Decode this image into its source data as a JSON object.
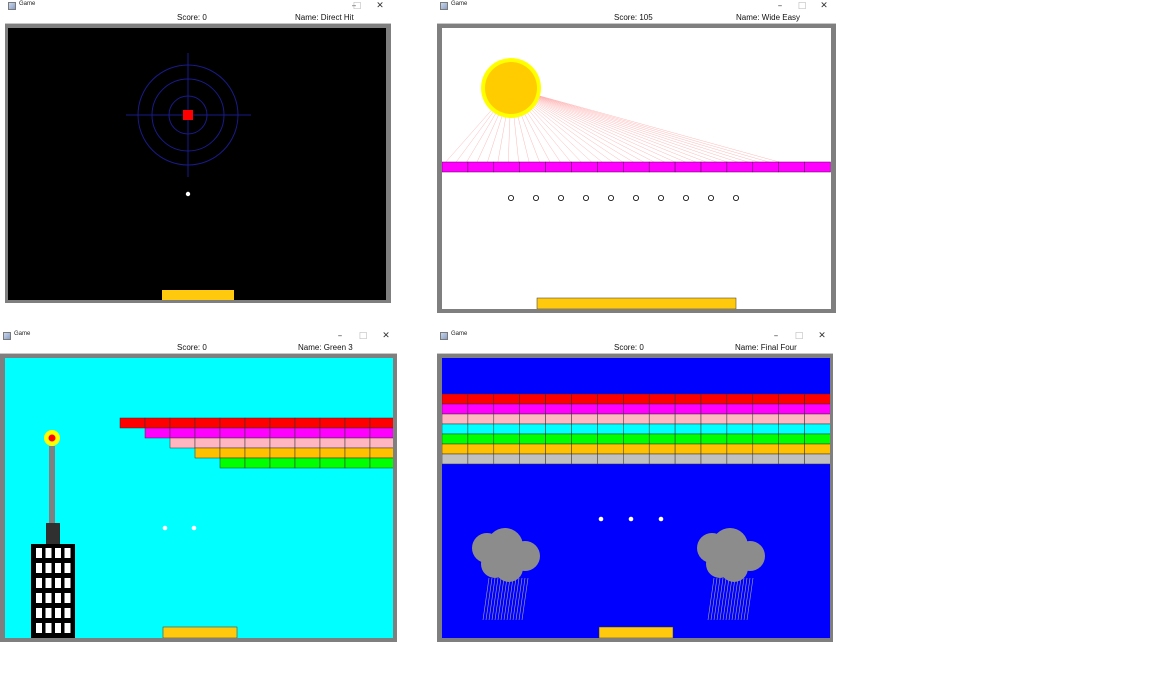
{
  "windows": [
    {
      "title": "Game",
      "score_text": "Score: 0",
      "name_text": "Name: Direct Hit",
      "background": "#000000",
      "minimize_icon": "minimize-icon",
      "maximize_icon": "maximize-icon",
      "close_icon": "close-icon"
    },
    {
      "title": "Game",
      "score_text": "Score: 105",
      "name_text": "Name: Wide Easy",
      "background": "#ffffff",
      "minimize_icon": "minimize-icon",
      "maximize_icon": "maximize-icon",
      "close_icon": "close-icon"
    },
    {
      "title": "Game",
      "score_text": "Score: 0",
      "name_text": "Name: Green 3",
      "background": "#00ffff",
      "minimize_icon": "minimize-icon",
      "maximize_icon": "maximize-icon",
      "close_icon": "close-icon"
    },
    {
      "title": "Game",
      "score_text": "Score: 0",
      "name_text": "Name: Final Four",
      "background": "#0000ff",
      "minimize_icon": "minimize-icon",
      "maximize_icon": "maximize-icon",
      "close_icon": "close-icon"
    }
  ],
  "glyphs": {
    "minimize": "–",
    "maximize": "□",
    "close": "✕"
  },
  "colors": {
    "frame": "#7f7f7f",
    "paddle": "#ffc90e",
    "sun": "#ffcc00",
    "sun_ring": "#ffff00",
    "target": "#ff0000",
    "target_rings": "#1a1a8a",
    "brick_red": "#ff0000",
    "brick_magenta": "#ff00ff",
    "brick_pink": "#ffb6c1",
    "brick_cyan": "#00ffff",
    "brick_green": "#00ff00",
    "brick_orange": "#ffc000",
    "brick_gray": "#c0c0c0",
    "cloud": "#8c8c8c",
    "building": "#000000",
    "flag_light": "#ff0000"
  }
}
